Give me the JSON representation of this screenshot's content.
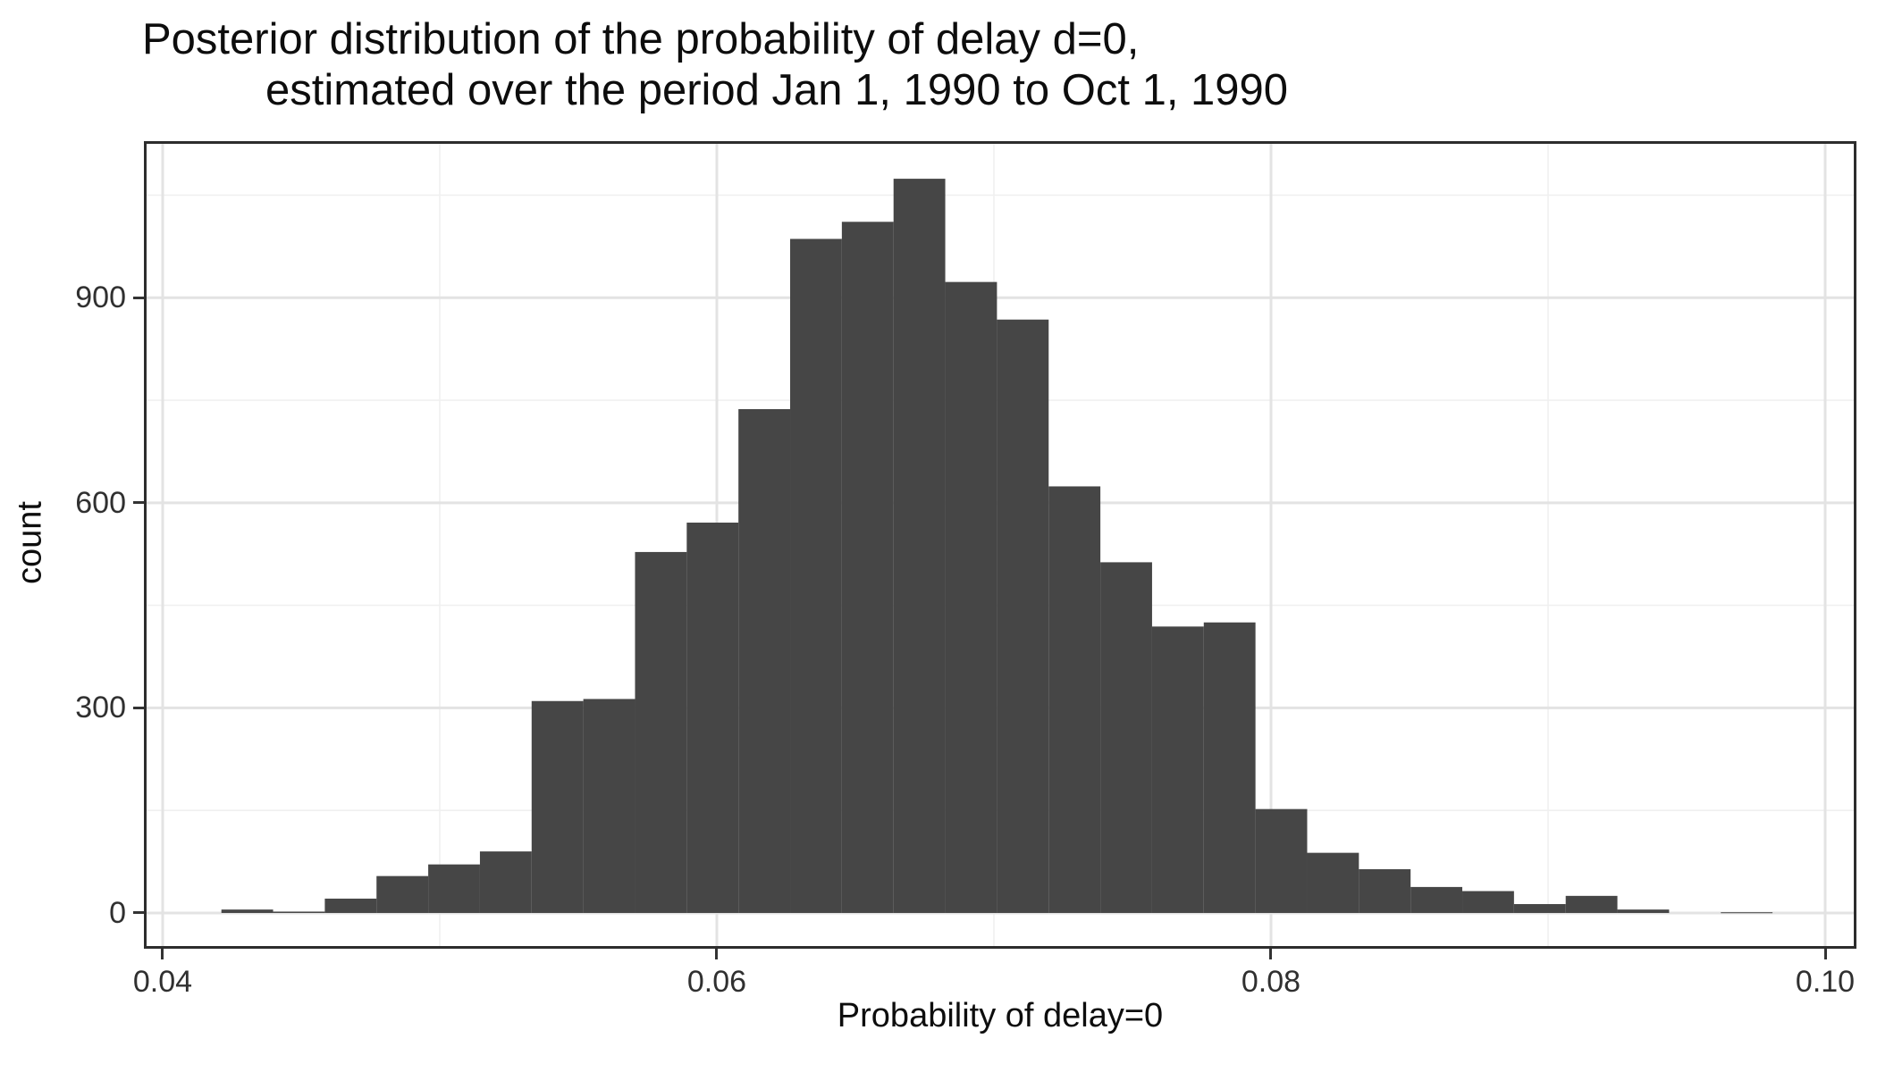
{
  "chart_data": {
    "type": "bar",
    "subtype": "histogram",
    "title_line1": "Posterior distribution of the probability of delay d=0,",
    "title_line2": "estimated over the period Jan 1, 1990 to Oct 1, 1990",
    "xlabel": "Probability of delay=0",
    "ylabel": "count",
    "legend": "none",
    "grid": "major and minor, light gray on white panel, black panel border",
    "x_axis": {
      "min": 0.039323,
      "max": 0.101129,
      "major_ticks": [
        {
          "value": 0.04,
          "label": "0.04"
        },
        {
          "value": 0.06,
          "label": "0.06"
        },
        {
          "value": 0.08,
          "label": "0.08"
        },
        {
          "value": 0.1,
          "label": "0.10"
        }
      ],
      "minor_ticks": [
        0.05,
        0.07,
        0.09
      ]
    },
    "y_axis": {
      "min": -52.3,
      "max": 1129,
      "major_ticks": [
        {
          "value": 0,
          "label": "0"
        },
        {
          "value": 300,
          "label": "300"
        },
        {
          "value": 600,
          "label": "600"
        },
        {
          "value": 900,
          "label": "900"
        }
      ],
      "minor_ticks": [
        150,
        450,
        750,
        1050
      ]
    },
    "bins": {
      "start": 0.04212,
      "width": 0.001866,
      "counts": [
        5,
        2,
        21,
        54,
        71,
        90,
        310,
        313,
        528,
        571,
        737,
        986,
        1011,
        1074,
        923,
        868,
        624,
        513,
        419,
        425,
        152,
        88,
        64,
        38,
        32,
        13,
        25,
        5,
        0,
        1
      ]
    },
    "colors": {
      "bar_fill": "#464646",
      "panel_border": "#2d2d2d",
      "grid_major": "#e3e3e3",
      "grid_minor": "#f0f0f0",
      "tick_mark": "#333333",
      "tick_label": "#303030",
      "title_text": "#0d0d0d",
      "background": "#ffffff"
    }
  }
}
